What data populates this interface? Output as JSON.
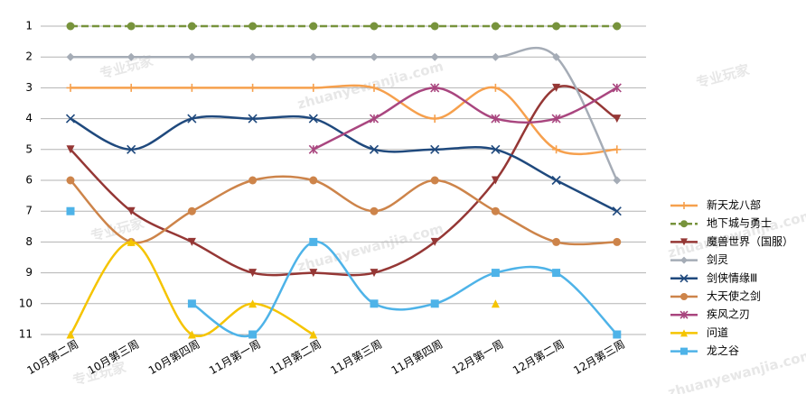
{
  "chart_data": {
    "type": "line",
    "categories": [
      "10月第二周",
      "10月第三周",
      "10月第四周",
      "11月第一周",
      "11月第二周",
      "11月第三周",
      "11月第四周",
      "12月第一周",
      "12月第二周",
      "12月第三周"
    ],
    "series": [
      {
        "name": "新天龙八部",
        "color": "#f6a04d",
        "marker": "plus",
        "values": [
          3,
          3,
          3,
          3,
          3,
          3,
          4,
          3,
          5,
          5
        ]
      },
      {
        "name": "地下城与勇士",
        "color": "#77933c",
        "marker": "circle",
        "dashed": true,
        "values": [
          1,
          1,
          1,
          1,
          1,
          1,
          1,
          1,
          1,
          1
        ]
      },
      {
        "name": "魔兽世界（国服）",
        "color": "#953735",
        "marker": "triangle-down",
        "values": [
          5,
          7,
          8,
          9,
          9,
          9,
          8,
          6,
          3,
          4
        ]
      },
      {
        "name": "剑灵",
        "color": "#a5acb6",
        "marker": "diamond",
        "values": [
          2,
          2,
          2,
          2,
          2,
          2,
          2,
          2,
          2,
          6
        ]
      },
      {
        "name": "剑侠情缘Ⅲ",
        "color": "#1f497d",
        "marker": "x",
        "values": [
          4,
          5,
          4,
          4,
          4,
          5,
          5,
          5,
          6,
          7
        ]
      },
      {
        "name": "大天使之剑",
        "color": "#cd844a",
        "marker": "circle",
        "values": [
          6,
          8,
          7,
          6,
          6,
          7,
          6,
          7,
          8,
          8
        ]
      },
      {
        "name": "疾风之刃",
        "color": "#a9467f",
        "marker": "asterisk",
        "values": [
          null,
          null,
          null,
          null,
          5,
          4,
          3,
          4,
          4,
          3
        ]
      },
      {
        "name": "问道",
        "color": "#f5c400",
        "marker": "triangle-up",
        "values": [
          11,
          8,
          11,
          10,
          11,
          null,
          null,
          10,
          null,
          null
        ]
      },
      {
        "name": "龙之谷",
        "color": "#4eb3e8",
        "marker": "square",
        "values": [
          7,
          null,
          10,
          11,
          8,
          10,
          10,
          9,
          9,
          11
        ]
      }
    ],
    "ylim": [
      1,
      11
    ],
    "y_reversed": true,
    "yticks": [
      1,
      2,
      3,
      4,
      5,
      6,
      7,
      8,
      9,
      10,
      11
    ],
    "grid": true,
    "legend": "right",
    "watermark": [
      "专业玩家",
      "zhuanyewanjia.com"
    ]
  }
}
